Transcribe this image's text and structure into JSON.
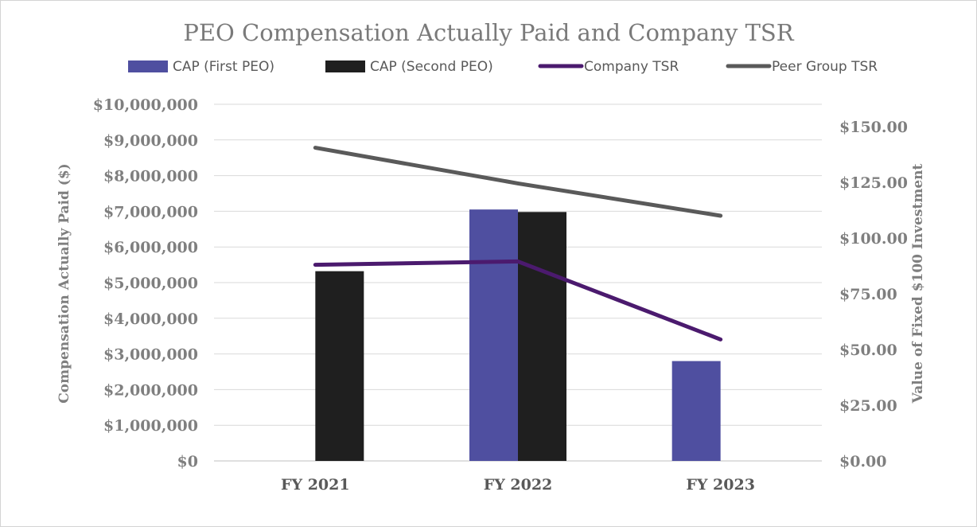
{
  "chart_data": {
    "type": "bar",
    "title": "PEO Compensation Actually Paid and Company TSR",
    "categories": [
      "FY 2021",
      "FY 2022",
      "FY 2023"
    ],
    "ylabel": "Compensation Actually Paid ($)",
    "y2label": "Value of Fixed $100 Investment",
    "ylim": [
      0,
      10000000
    ],
    "y2lim": [
      0,
      160
    ],
    "yticks": [
      "$0",
      "$1,000,000",
      "$2,000,000",
      "$3,000,000",
      "$4,000,000",
      "$5,000,000",
      "$6,000,000",
      "$7,000,000",
      "$8,000,000",
      "$9,000,000",
      "$10,000,000"
    ],
    "y2ticks": [
      "$0.00",
      "$25.00",
      "$50.00",
      "$75.00",
      "$100.00",
      "$125.00",
      "$150.00"
    ],
    "grid": true,
    "legend_position": "top",
    "series": [
      {
        "name": "CAP (First PEO)",
        "kind": "bar",
        "axis": "left",
        "color": "#4f4fa0",
        "values": [
          null,
          7050000,
          2800000
        ]
      },
      {
        "name": "CAP (Second PEO)",
        "kind": "bar",
        "axis": "left",
        "color": "#1f1f1f",
        "values": [
          5320000,
          6980000,
          null
        ]
      },
      {
        "name": "Company TSR",
        "kind": "line",
        "axis": "right",
        "color": "#4b1a6e",
        "values": [
          88,
          89.5,
          54.5
        ]
      },
      {
        "name": "Peer Group TSR",
        "kind": "line",
        "axis": "right",
        "color": "#5a5a5a",
        "values": [
          140.5,
          124.5,
          110
        ]
      }
    ]
  }
}
